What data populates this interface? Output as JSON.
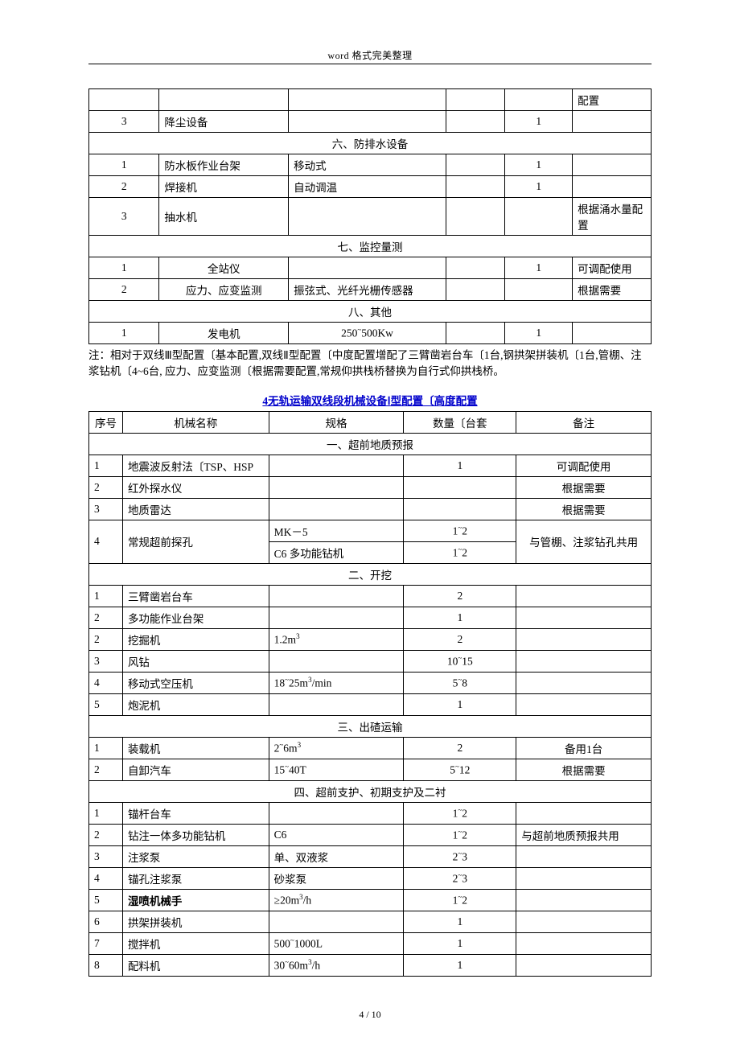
{
  "header": "word 格式完美整理",
  "pageNum": "4 / 10",
  "table1": {
    "cols": {
      "c1": 12.5,
      "c2": 23,
      "c3": 28,
      "c4": 10.5,
      "c5": 12,
      "c6": 14
    },
    "rows": [
      {
        "t": "row",
        "c": [
          "",
          "",
          "",
          "",
          "",
          "配置"
        ]
      },
      {
        "t": "row",
        "c": [
          "3",
          "降尘设备",
          "",
          "",
          "1",
          ""
        ],
        "center": [
          0,
          4
        ]
      },
      {
        "t": "section",
        "label": "六、防排水设备"
      },
      {
        "t": "row",
        "c": [
          "1",
          "防水板作业台架",
          "移动式",
          "",
          "1",
          ""
        ],
        "center": [
          0,
          4
        ]
      },
      {
        "t": "row",
        "c": [
          "2",
          "焊接机",
          "自动调温",
          "",
          "1",
          ""
        ],
        "center": [
          0,
          4
        ]
      },
      {
        "t": "row",
        "c": [
          "3",
          "抽水机",
          "",
          "",
          "",
          "根据涌水量配置"
        ],
        "center": [
          0,
          4
        ]
      },
      {
        "t": "section",
        "label": "七、监控量测"
      },
      {
        "t": "row",
        "c": [
          "1",
          "全站仪",
          "",
          "",
          "1",
          "可调配使用"
        ],
        "center": [
          0,
          1,
          4
        ]
      },
      {
        "t": "row",
        "c": [
          "2",
          "应力、应变监测",
          "振弦式、光纤光栅传感器",
          "",
          "",
          "根据需要"
        ],
        "center": [
          0,
          1
        ]
      },
      {
        "t": "section",
        "label": "八、其他"
      },
      {
        "t": "row",
        "c": [
          "1",
          "发电机",
          "250~500Kw",
          "",
          "1",
          ""
        ],
        "center": [
          0,
          1,
          2,
          4
        ]
      }
    ]
  },
  "note": "注：相对于双线Ⅲ型配置〔基本配置,双线Ⅱ型配置〔中度配置增配了三臂凿岩台车〔1台,钢拱架拼装机〔1台,管棚、注浆钻机〔4~6台, 应力、应变监测〔根据需要配置,常规仰拱栈桥替换为自行式仰拱栈桥。",
  "table2": {
    "title": "4无轨运输双线段机械设备Ⅰ型配置〔高度配置",
    "cols": {
      "c1": 6,
      "c2": 26,
      "c3": 24,
      "c4": 20,
      "c5": 24
    },
    "headers": [
      "序号",
      "机械名称",
      "规格",
      "数量〔台套",
      "备注"
    ],
    "rows": [
      {
        "t": "section",
        "label": "一、超前地质预报"
      },
      {
        "t": "row",
        "c": [
          "1",
          "地震波反射法〔TSP、HSP",
          "",
          "1",
          "可调配使用"
        ],
        "center": [
          3,
          4
        ]
      },
      {
        "t": "row",
        "c": [
          "2",
          "红外探水仪",
          "",
          "",
          "根据需要"
        ],
        "center": [
          4
        ]
      },
      {
        "t": "row",
        "c": [
          "3",
          "地质雷达",
          "",
          "",
          "根据需要"
        ],
        "center": [
          4
        ]
      },
      {
        "t": "rowspan",
        "c1": "4",
        "c2": "常规超前探孔",
        "sub": [
          [
            "MK－5",
            "1~2"
          ],
          [
            "C6 多功能钻机",
            "1~2"
          ]
        ],
        "c5": "与管棚、注浆钻孔共用",
        "center5": true
      },
      {
        "t": "section",
        "label": "二、开挖"
      },
      {
        "t": "row",
        "c": [
          "1",
          "三臂凿岩台车",
          "",
          "2",
          ""
        ],
        "center": [
          3
        ]
      },
      {
        "t": "row",
        "c": [
          "2",
          "多功能作业台架",
          "",
          "1",
          ""
        ],
        "center": [
          3
        ]
      },
      {
        "t": "row",
        "c": [
          "2",
          "挖掘机",
          "1.2m³",
          "2",
          ""
        ],
        "center": [
          3
        ]
      },
      {
        "t": "row",
        "c": [
          "3",
          "风钻",
          "",
          "10~15",
          ""
        ],
        "center": [
          3
        ]
      },
      {
        "t": "row",
        "c": [
          "4",
          "移动式空压机",
          "18~25m³/min",
          "5~8",
          ""
        ],
        "center": [
          3
        ]
      },
      {
        "t": "row",
        "c": [
          "5",
          "炮泥机",
          "",
          "1",
          ""
        ],
        "center": [
          3
        ]
      },
      {
        "t": "section",
        "label": "三、出碴运输"
      },
      {
        "t": "row",
        "c": [
          "1",
          "装载机",
          "2~6m³",
          "2",
          "备用1台"
        ],
        "center": [
          3,
          4
        ]
      },
      {
        "t": "row",
        "c": [
          "2",
          "自卸汽车",
          "15~40T",
          "5~12",
          "根据需要"
        ],
        "center": [
          3,
          4
        ]
      },
      {
        "t": "section",
        "label": "四、超前支护、初期支护及二衬"
      },
      {
        "t": "row",
        "c": [
          "1",
          "锚杆台车",
          "",
          "1~2",
          ""
        ],
        "center": [
          3
        ]
      },
      {
        "t": "row",
        "c": [
          "2",
          "钻注一体多功能钻机",
          "C6",
          "1~2",
          "与超前地质预报共用"
        ],
        "center": [
          3
        ]
      },
      {
        "t": "row",
        "c": [
          "3",
          "注浆泵",
          "单、双液浆",
          "2~3",
          ""
        ],
        "center": [
          3
        ]
      },
      {
        "t": "row",
        "c": [
          "4",
          "锚孔注浆泵",
          "砂浆泵",
          "2~3",
          ""
        ],
        "center": [
          3
        ]
      },
      {
        "t": "row",
        "c": [
          "5",
          "湿喷机械手",
          "≥20m³/h",
          "1~2",
          ""
        ],
        "center": [
          3
        ],
        "bold": [
          1
        ]
      },
      {
        "t": "row",
        "c": [
          "6",
          "拱架拼装机",
          "",
          "1",
          ""
        ],
        "center": [
          3
        ]
      },
      {
        "t": "row",
        "c": [
          "7",
          "搅拌机",
          "500~1000L",
          "1",
          ""
        ],
        "center": [
          3
        ]
      },
      {
        "t": "row",
        "c": [
          "8",
          "配料机",
          "30~60m³/h",
          "1",
          ""
        ],
        "center": [
          3
        ]
      }
    ]
  }
}
